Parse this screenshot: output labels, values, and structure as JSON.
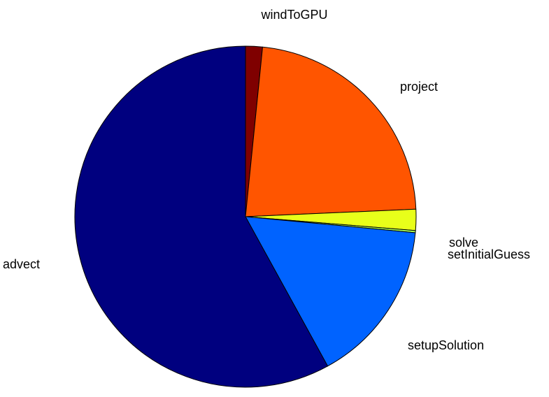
{
  "chart_data": {
    "type": "pie",
    "title": "",
    "slices": [
      {
        "label": "windToGPU",
        "value": 1.6,
        "color": "#7f0000"
      },
      {
        "label": "project",
        "value": 22.7,
        "color": "#ff5500"
      },
      {
        "label": "solve",
        "value": 2.0,
        "color": "#e8ff1a"
      },
      {
        "label": "setInitialGuess",
        "value": 0.2,
        "color": "#aaff55"
      },
      {
        "label": "setupSolution",
        "value": 15.5,
        "color": "#0063ff"
      },
      {
        "label": "advect",
        "value": 58.0,
        "color": "#00007f"
      }
    ],
    "start_angle": "top",
    "direction": "clockwise",
    "legend": "none"
  }
}
